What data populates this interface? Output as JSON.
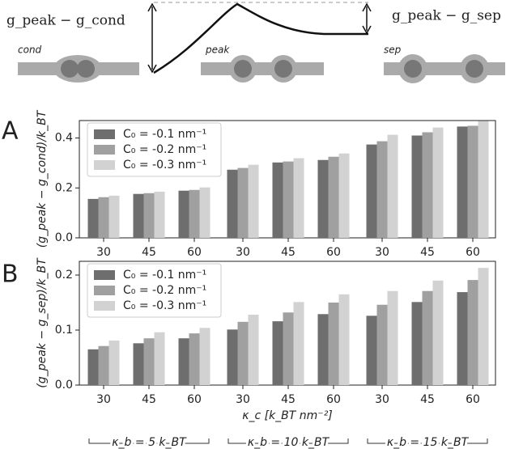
{
  "schematic": {
    "left_label": "g_peak − g_cond",
    "right_label": "g_peak − g_sep",
    "states": [
      "cond",
      "peak",
      "sep"
    ]
  },
  "panels": [
    "A",
    "B"
  ],
  "group_labels": [
    "κ_b = 5 k_BT",
    "κ_b = 10 k_BT",
    "κ_b = 15 k_BT"
  ],
  "chart_data": [
    {
      "type": "bar",
      "ylabel": "(g_peak − g_cond)/k_BT",
      "categories": [
        "30",
        "45",
        "60",
        "30",
        "45",
        "60",
        "30",
        "45",
        "60"
      ],
      "series": [
        {
          "name": "C₀ = -0.1 nm⁻¹",
          "color": "#6e6e6e",
          "values": [
            0.156,
            0.176,
            0.189,
            0.273,
            0.302,
            0.312,
            0.374,
            0.41,
            0.446
          ]
        },
        {
          "name": "C₀ = -0.2 nm⁻¹",
          "color": "#a0a0a0",
          "values": [
            0.163,
            0.179,
            0.192,
            0.28,
            0.306,
            0.325,
            0.387,
            0.423,
            0.449
          ]
        },
        {
          "name": "C₀ = -0.3 nm⁻¹",
          "color": "#d2d2d2",
          "values": [
            0.169,
            0.185,
            0.202,
            0.293,
            0.319,
            0.338,
            0.413,
            0.442,
            0.468
          ]
        }
      ],
      "ylim": [
        0,
        0.47
      ],
      "yticks": [
        {
          "value": 0,
          "label": "0.0"
        },
        0.2,
        0.4
      ],
      "legend": "upper left"
    },
    {
      "type": "bar",
      "ylabel": "(g_peak − g_sep)/k_BT",
      "xlabel": "κ_c [k_BT nm⁻²]",
      "categories": [
        "30",
        "45",
        "60",
        "30",
        "45",
        "60",
        "30",
        "45",
        "60"
      ],
      "series": [
        {
          "name": "C₀ = -0.1 nm⁻¹",
          "color": "#6e6e6e",
          "values": [
            0.065,
            0.076,
            0.085,
            0.101,
            0.116,
            0.129,
            0.126,
            0.151,
            0.169
          ]
        },
        {
          "name": "C₀ = -0.2 nm⁻¹",
          "color": "#a0a0a0",
          "values": [
            0.071,
            0.085,
            0.094,
            0.115,
            0.132,
            0.15,
            0.146,
            0.171,
            0.191
          ]
        },
        {
          "name": "C₀ = -0.3 nm⁻¹",
          "color": "#d2d2d2",
          "values": [
            0.081,
            0.096,
            0.104,
            0.128,
            0.151,
            0.165,
            0.171,
            0.19,
            0.213
          ]
        }
      ],
      "ylim": [
        0,
        0.225
      ],
      "yticks": [
        {
          "value": 0,
          "label": "0.0"
        },
        0.1,
        0.2
      ],
      "legend": "upper left"
    }
  ]
}
